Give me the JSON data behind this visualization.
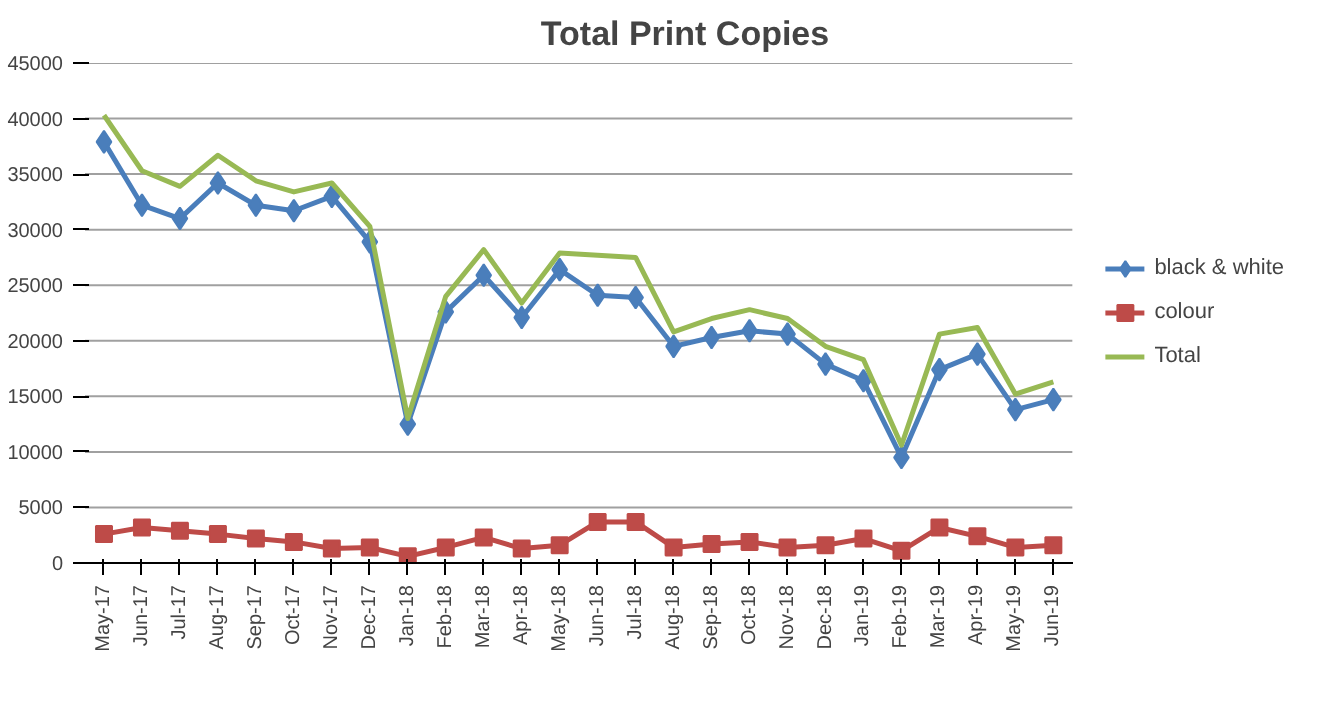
{
  "chart_data": {
    "type": "line",
    "title": "Total Print Copies",
    "categories": [
      "May-17",
      "Jun-17",
      "Jul-17",
      "Aug-17",
      "Sep-17",
      "Oct-17",
      "Nov-17",
      "Dec-17",
      "Jan-18",
      "Feb-18",
      "Mar-18",
      "Apr-18",
      "May-18",
      "Jun-18",
      "Jul-18",
      "Aug-18",
      "Sep-18",
      "Oct-18",
      "Nov-18",
      "Dec-18",
      "Jan-19",
      "Feb-19",
      "Mar-19",
      "Apr-19",
      "May-19",
      "Jun-19"
    ],
    "series": [
      {
        "name": "black & white",
        "color": "#4a7ebb",
        "marker": "diamond",
        "values": [
          37900,
          32200,
          31000,
          34200,
          32200,
          31700,
          33000,
          28900,
          12500,
          22600,
          25900,
          22100,
          26400,
          24100,
          23900,
          19500,
          20300,
          20900,
          20600,
          17900,
          16400,
          9500,
          17400,
          18800,
          13800,
          14700
        ]
      },
      {
        "name": "colour",
        "color": "#be4b48",
        "marker": "square",
        "values": [
          2600,
          3200,
          2900,
          2600,
          2200,
          1900,
          1300,
          1400,
          600,
          1400,
          2300,
          1300,
          1600,
          3700,
          3700,
          1400,
          1700,
          1900,
          1400,
          1600,
          2200,
          1100,
          3200,
          2400,
          1400,
          1600
        ]
      },
      {
        "name": "Total",
        "color": "#98b954",
        "marker": "none",
        "values": [
          40300,
          35300,
          33900,
          36700,
          34400,
          33400,
          34200,
          30300,
          13000,
          24000,
          28200,
          23400,
          27900,
          27700,
          27500,
          20800,
          22000,
          22800,
          22000,
          19500,
          18300,
          10600,
          20600,
          21200,
          15200,
          16300
        ]
      }
    ],
    "ylim": [
      0,
      45000
    ],
    "yticks": [
      0,
      5000,
      10000,
      15000,
      20000,
      25000,
      30000,
      35000,
      40000,
      45000
    ],
    "grid": "y",
    "legend": "right"
  }
}
